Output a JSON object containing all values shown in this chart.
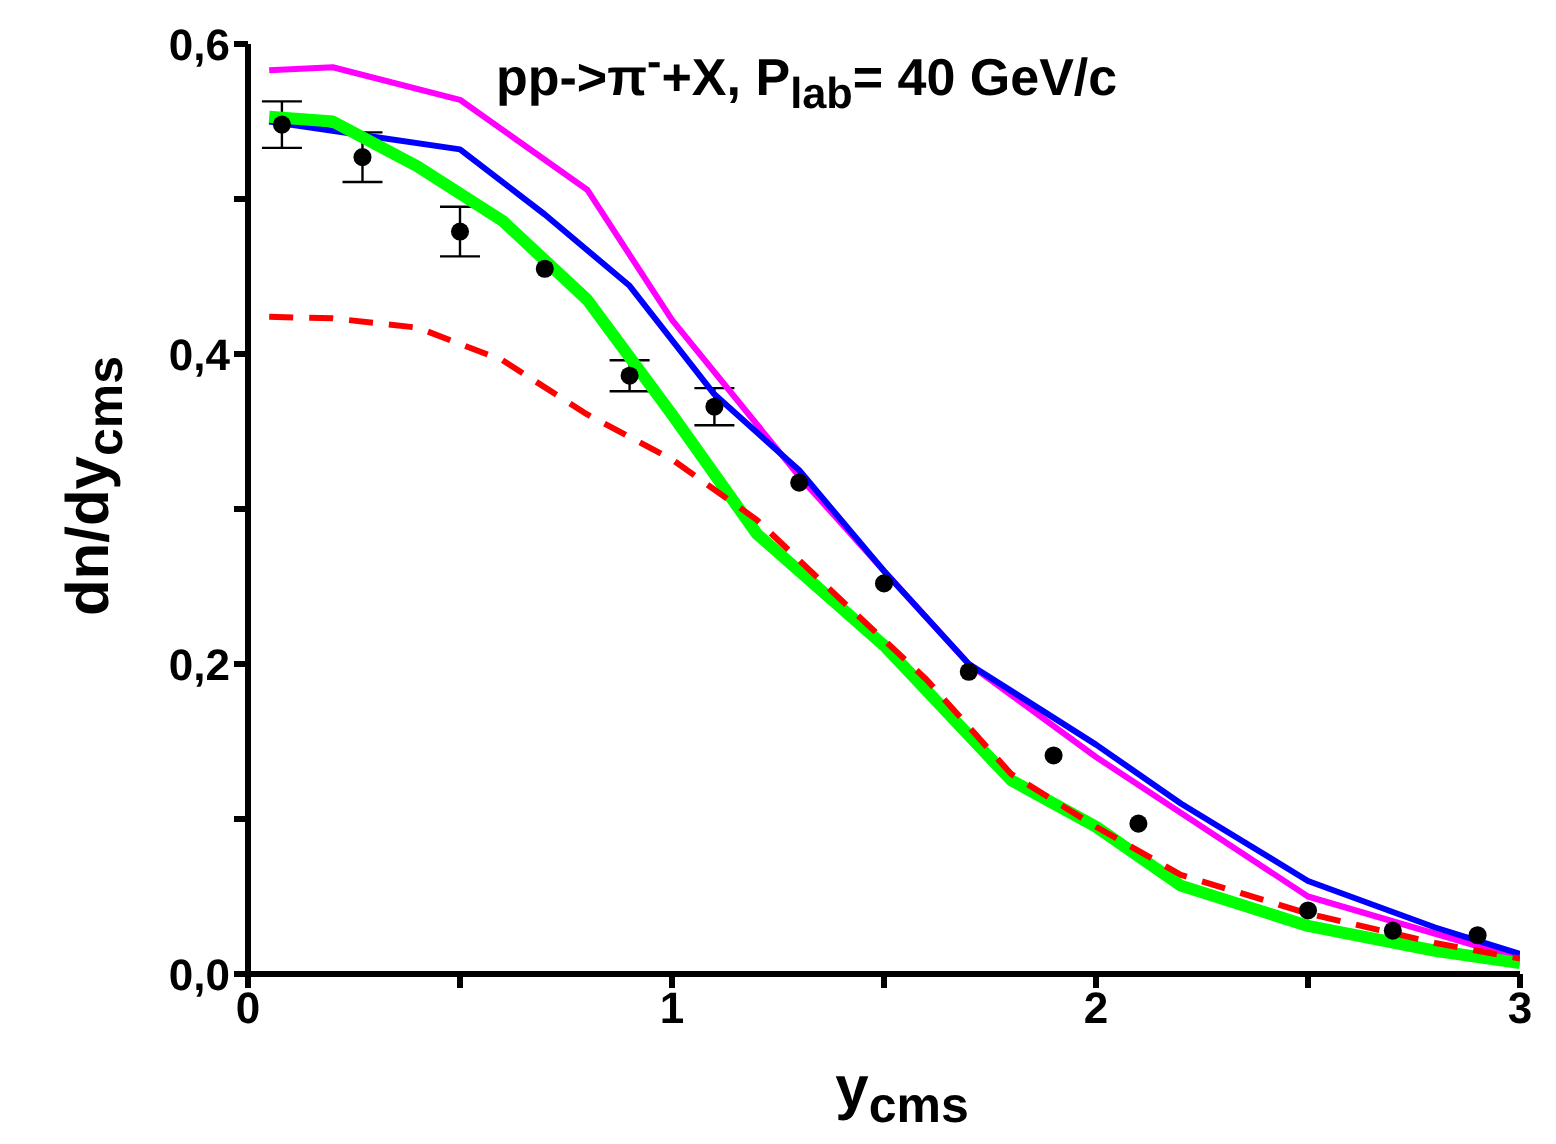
{
  "chart_data": {
    "type": "line",
    "title": "pp->π$^{-}$+X, P$_{lab}$= 40 GeV/c",
    "xlabel": "y$_{cms}$",
    "ylabel": "dn/dy$_{cms}$",
    "xlim": [
      0,
      3
    ],
    "xticks": [
      0,
      {
        "value": 0.5,
        "label": null
      },
      1,
      {
        "value": 1.5,
        "label": null
      },
      2,
      {
        "value": 2.5,
        "label": null
      },
      3
    ],
    "ylim": [
      0,
      0.6
    ],
    "yticks": [
      {
        "value": 0,
        "label": "0,0"
      },
      {
        "value": 0.1,
        "label": null
      },
      {
        "value": 0.2,
        "label": "0,2"
      },
      {
        "value": 0.3,
        "label": null
      },
      {
        "value": 0.4,
        "label": "0,4"
      },
      {
        "value": 0.5,
        "label": null
      },
      {
        "value": 0.6,
        "label": "0,6"
      }
    ],
    "grid": false,
    "legend": false,
    "series": [
      {
        "type": "scatter",
        "color": "#000000",
        "marker": "circle",
        "x": [
          0.08,
          0.27,
          0.5,
          0.7,
          0.9,
          1.1,
          1.3,
          1.5,
          1.7,
          1.9,
          2.1,
          2.5,
          2.7,
          2.9
        ],
        "values": [
          0.548,
          0.527,
          0.479,
          0.455,
          0.386,
          0.366,
          0.317,
          0.252,
          0.195,
          0.141,
          0.097,
          0.041,
          0.028,
          0.025
        ],
        "errors": [
          0.015,
          0.016,
          0.016,
          null,
          0.01,
          0.012,
          null,
          null,
          null,
          null,
          null,
          null,
          null,
          null
        ]
      },
      {
        "color": "#ff00ff",
        "line_style": "solid",
        "x": [
          0.05,
          0.2,
          0.5,
          0.8,
          1.0,
          1.3,
          1.5,
          1.7,
          2.0,
          2.5,
          3.0
        ],
        "values": [
          0.583,
          0.585,
          0.564,
          0.506,
          0.422,
          0.321,
          0.26,
          0.2,
          0.14,
          0.05,
          0.01
        ]
      },
      {
        "color": "#0000ff",
        "line_style": "solid",
        "x": [
          0.05,
          0.3,
          0.5,
          0.7,
          0.9,
          1.1,
          1.3,
          1.5,
          1.7,
          2.0,
          2.2,
          2.5,
          2.8,
          3.0
        ],
        "values": [
          0.55,
          0.54,
          0.532,
          0.49,
          0.444,
          0.374,
          0.325,
          0.26,
          0.2,
          0.148,
          0.11,
          0.06,
          0.03,
          0.013
        ]
      },
      {
        "color": "#00ff00",
        "line_style": "solid",
        "x": [
          0.05,
          0.2,
          0.4,
          0.6,
          0.8,
          1.0,
          1.2,
          1.5,
          1.8,
          2.0,
          2.2,
          2.5,
          2.8,
          3.0
        ],
        "values": [
          0.553,
          0.55,
          0.521,
          0.486,
          0.435,
          0.361,
          0.284,
          0.212,
          0.125,
          0.095,
          0.057,
          0.031,
          0.015,
          0.007
        ]
      },
      {
        "color": "#ff0000",
        "line_style": "dashed",
        "x": [
          0.05,
          0.2,
          0.4,
          0.6,
          0.8,
          1.0,
          1.2,
          1.4,
          1.6,
          1.8,
          2.0,
          2.2,
          2.5,
          2.8,
          3.0
        ],
        "values": [
          0.424,
          0.423,
          0.417,
          0.396,
          0.361,
          0.332,
          0.293,
          0.241,
          0.19,
          0.129,
          0.095,
          0.064,
          0.039,
          0.02,
          0.01
        ]
      }
    ]
  }
}
